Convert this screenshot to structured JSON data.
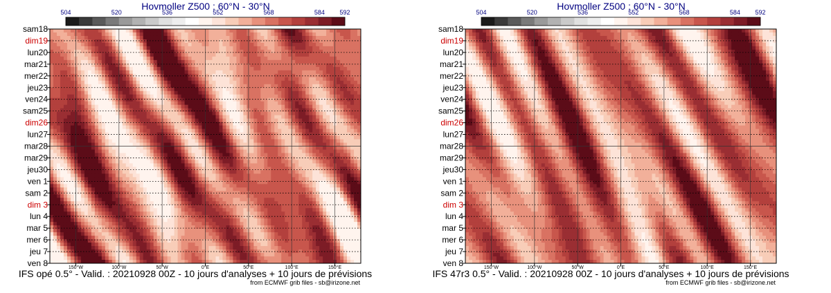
{
  "chart_data": [
    {
      "type": "heatmap",
      "title": "Hovmoller Z500 : 60°N - 30°N",
      "subtitle": "IFS opé 0.5° - Valid. : 20210928 00Z - 10 jours d'analyses + 10 jours de prévisions",
      "credit": "from ECMWF grib files - sb@irizone.net",
      "colorbar_ticks": [
        "504",
        "520",
        "536",
        "552",
        "568",
        "584",
        "592"
      ],
      "x_ticks": [
        "150°W",
        "100°W",
        "50°W",
        "0°E",
        "50°E",
        "100°E",
        "150°E"
      ],
      "y_ticks": [
        "sam18",
        "dim19",
        "lun20",
        "mar21",
        "mer22",
        "jeu23",
        "ven24",
        "sam25",
        "dim26",
        "lun27",
        "mar28",
        "mar29",
        "jeu30",
        "ven 1",
        "sam 2",
        "dim 3",
        "lun 4",
        "mar 5",
        "mer 6",
        "jeu 7",
        "ven 8"
      ],
      "y_tick_highlight": [
        false,
        true,
        false,
        false,
        false,
        false,
        false,
        false,
        true,
        false,
        false,
        false,
        false,
        false,
        false,
        true,
        false,
        false,
        false,
        false,
        false
      ],
      "analysis_end_tick": "mar28",
      "xlim": [
        -180,
        180
      ],
      "grid": true,
      "seed": 7
    },
    {
      "type": "heatmap",
      "title": "Hovmoller Z500 : 60°N - 30°N",
      "subtitle": "IFS 47r3 0.5° - Valid. : 20210928 00Z - 10 jours d'analyses + 10 jours de prévisions",
      "credit": "from ECMWF grib files - sb@irizone.net",
      "colorbar_ticks": [
        "504",
        "520",
        "536",
        "552",
        "568",
        "584",
        "592"
      ],
      "x_ticks": [
        "150°W",
        "100°W",
        "50°W",
        "0°E",
        "50°E",
        "100°E",
        "150°E"
      ],
      "y_ticks": [
        "sam18",
        "dim19",
        "lun20",
        "mar21",
        "mer22",
        "jeu23",
        "ven24",
        "sam25",
        "dim26",
        "lun27",
        "mar28",
        "mar29",
        "jeu30",
        "ven 1",
        "sam 2",
        "dim 3",
        "lun 4",
        "mar 5",
        "mer 6",
        "jeu 7",
        "ven 8"
      ],
      "y_tick_highlight": [
        false,
        true,
        false,
        false,
        false,
        false,
        false,
        false,
        true,
        false,
        false,
        false,
        false,
        false,
        false,
        true,
        false,
        false,
        false,
        false,
        false
      ],
      "analysis_end_tick": "mar28",
      "xlim": [
        -180,
        180
      ],
      "grid": true,
      "seed": 19
    }
  ],
  "colors": {
    "palette": [
      "#1a1a1a",
      "#3a3a3a",
      "#5a5a5a",
      "#7a7a7a",
      "#9a9a9a",
      "#b2b2b2",
      "#cacaca",
      "#e0e0e0",
      "#eeeeee",
      "#ffffff",
      "#fff4ee",
      "#fde3d8",
      "#f8cdb8",
      "#f2b09a",
      "#e8917c",
      "#d97262",
      "#c8564c",
      "#b3403d",
      "#9a2e33",
      "#7d1c26",
      "#5c0c18"
    ],
    "title": "#000080",
    "weekend": "#cc0000",
    "text": "#000000"
  }
}
